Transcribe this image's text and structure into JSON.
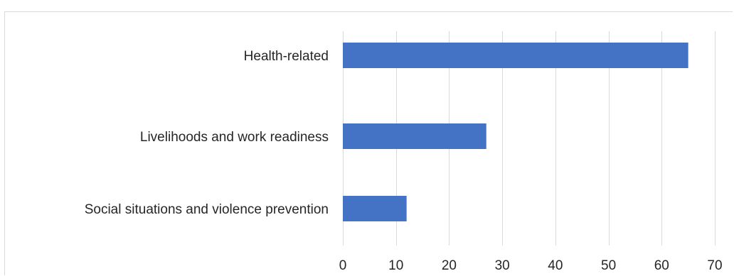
{
  "chart_data": {
    "type": "bar",
    "orientation": "horizontal",
    "categories": [
      "Health-related",
      "Livelihoods and work readiness",
      "Social situations and violence prevention"
    ],
    "values": [
      65,
      27,
      12
    ],
    "title": "",
    "xlabel": "",
    "ylabel": "",
    "xlim": [
      0,
      70
    ],
    "xticks": [
      0,
      10,
      20,
      30,
      40,
      50,
      60,
      70
    ],
    "grid": "vertical",
    "legend": "none",
    "bar_color": "#4472c4",
    "grid_color": "#d9d9d9"
  }
}
